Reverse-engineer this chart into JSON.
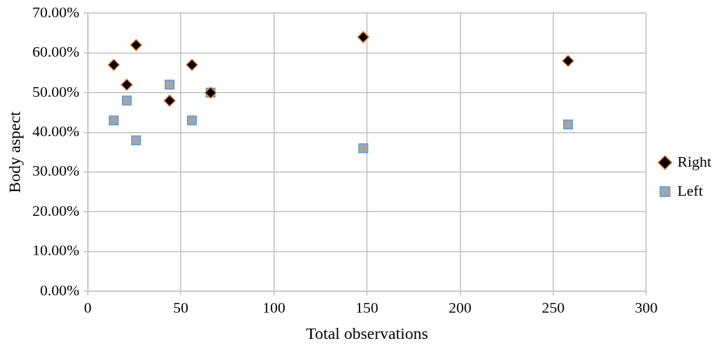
{
  "chart_data": {
    "type": "scatter",
    "xlabel": "Total observations",
    "ylabel": "Body aspect",
    "xlim": [
      0,
      300
    ],
    "xticks": [
      0,
      50,
      100,
      150,
      200,
      250,
      300
    ],
    "ylim": [
      0,
      70
    ],
    "yticks": [
      {
        "value": 0,
        "label": "0.00%"
      },
      {
        "value": 10,
        "label": "10.00%"
      },
      {
        "value": 20,
        "label": "20.00%"
      },
      {
        "value": 30,
        "label": "30.00%"
      },
      {
        "value": 40,
        "label": "40.00%"
      },
      {
        "value": 50,
        "label": "50.00%"
      },
      {
        "value": 60,
        "label": "60.00%"
      },
      {
        "value": 70,
        "label": "70.00%"
      }
    ],
    "grid": true,
    "legend": "right",
    "series": [
      {
        "name": "Left",
        "color": "#a5a5a5",
        "marker": "square",
        "x": [
          14,
          21,
          26,
          44,
          56,
          66,
          148,
          258
        ],
        "values": [
          43,
          48,
          38,
          52,
          43,
          50,
          36,
          42
        ]
      },
      {
        "name": "Right",
        "color": "#000000",
        "marker": "diamond",
        "x": [
          14,
          21,
          26,
          44,
          56,
          66,
          148,
          258
        ],
        "values": [
          57,
          52,
          62,
          48,
          57,
          50,
          64,
          58
        ]
      }
    ]
  }
}
